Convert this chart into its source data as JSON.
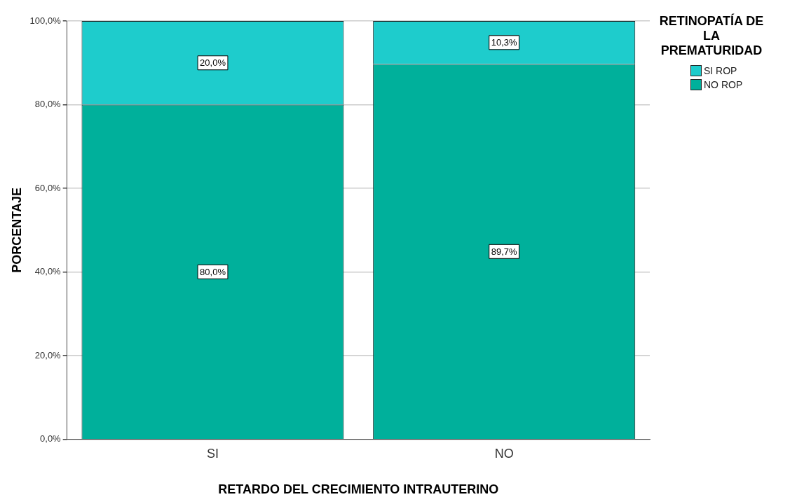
{
  "chart_data": {
    "type": "bar",
    "stacked": true,
    "xlabel": "RETARDO DEL CRECIMIENTO INTRAUTERINO",
    "ylabel": "PORCENTAJE",
    "legend_title": "RETINOPATÍA DE LA PREMATURIDAD",
    "legend": "top right",
    "grid": "y",
    "categories": [
      "SI",
      "NO"
    ],
    "series": [
      {
        "name": "NO ROP",
        "color": "#00b09b",
        "values": [
          80.0,
          89.7
        ],
        "value_labels": [
          "80,0%",
          "89,7%"
        ]
      },
      {
        "name": "SI ROP",
        "color": "#1ecccc",
        "values": [
          20.0,
          10.3
        ],
        "value_labels": [
          "20,0%",
          "10,3%"
        ]
      }
    ],
    "ylim": [
      0,
      100
    ],
    "yticks": [
      {
        "value": 0,
        "label": "0,0%"
      },
      {
        "value": 20,
        "label": "20,0%"
      },
      {
        "value": 40,
        "label": "40,0%"
      },
      {
        "value": 60,
        "label": "60,0%"
      },
      {
        "value": 80,
        "label": "80,0%"
      },
      {
        "value": 100,
        "label": "100,0%"
      }
    ]
  }
}
